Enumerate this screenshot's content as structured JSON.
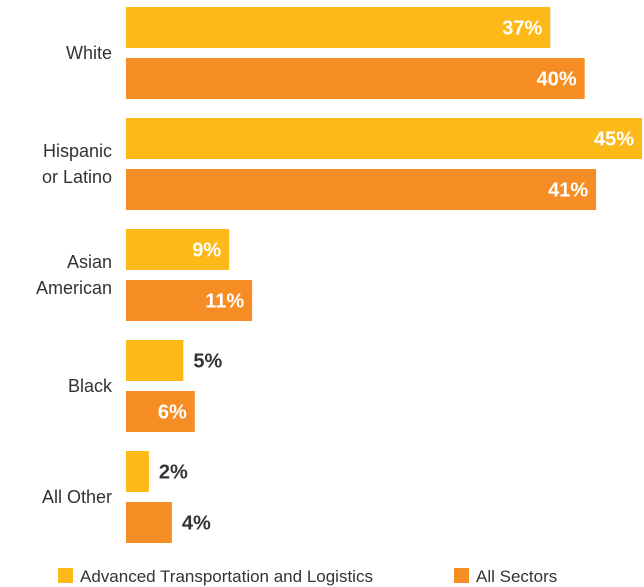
{
  "chart_data": {
    "type": "bar",
    "orientation": "horizontal",
    "categories": [
      [
        "White"
      ],
      [
        "Hispanic",
        "or Latino"
      ],
      [
        "Asian",
        "American"
      ],
      [
        "Black"
      ],
      [
        "All Other"
      ]
    ],
    "series": [
      {
        "name": "Advanced Transportation and Logistics",
        "values": [
          37,
          45,
          9,
          5,
          2
        ],
        "labels": [
          "37%",
          "45%",
          "9%",
          "5%",
          "2%"
        ],
        "color": "#FDB917"
      },
      {
        "name": "All Sectors",
        "values": [
          40,
          41,
          11,
          6,
          4
        ],
        "labels": [
          "40%",
          "41%",
          "11%",
          "6%",
          "4%"
        ],
        "color": "#F68D24"
      }
    ],
    "xlim": [
      0,
      45
    ],
    "grid": false,
    "legend_position": "bottom"
  }
}
